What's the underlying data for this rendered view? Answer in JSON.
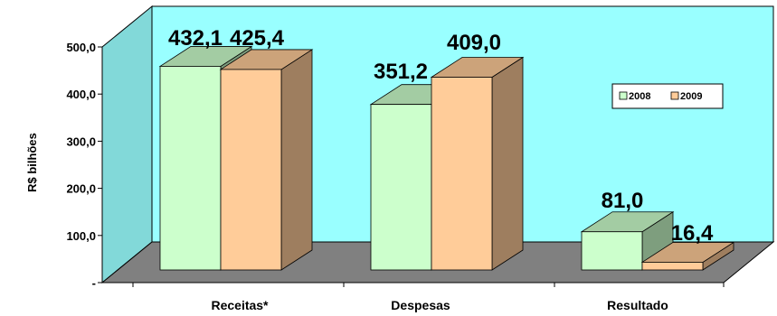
{
  "chart_data": {
    "type": "bar",
    "categories": [
      "Receitas*",
      "Despesas",
      "Resultado"
    ],
    "series": [
      {
        "name": "2008",
        "values": [
          432.1,
          351.2,
          81.0
        ],
        "labels": [
          "432,1",
          "351,2",
          "81,0"
        ],
        "color": "#ccffcc"
      },
      {
        "name": "2009",
        "values": [
          425.4,
          409.0,
          16.4
        ],
        "labels": [
          "425,4",
          "409,0",
          "16,4"
        ],
        "color": "#ffcc99"
      }
    ],
    "ylabel": "R$ bilhões",
    "ylim": [
      0,
      500
    ],
    "yticks": [
      0,
      100,
      200,
      300,
      400,
      500
    ],
    "ytick_labels": [
      "-",
      "100,0",
      "200,0",
      "300,0",
      "400,0",
      "500,0"
    ],
    "legend": "inside-right",
    "grid": false,
    "colors": {
      "wall": "#99ffff",
      "floor": "#808080"
    }
  }
}
